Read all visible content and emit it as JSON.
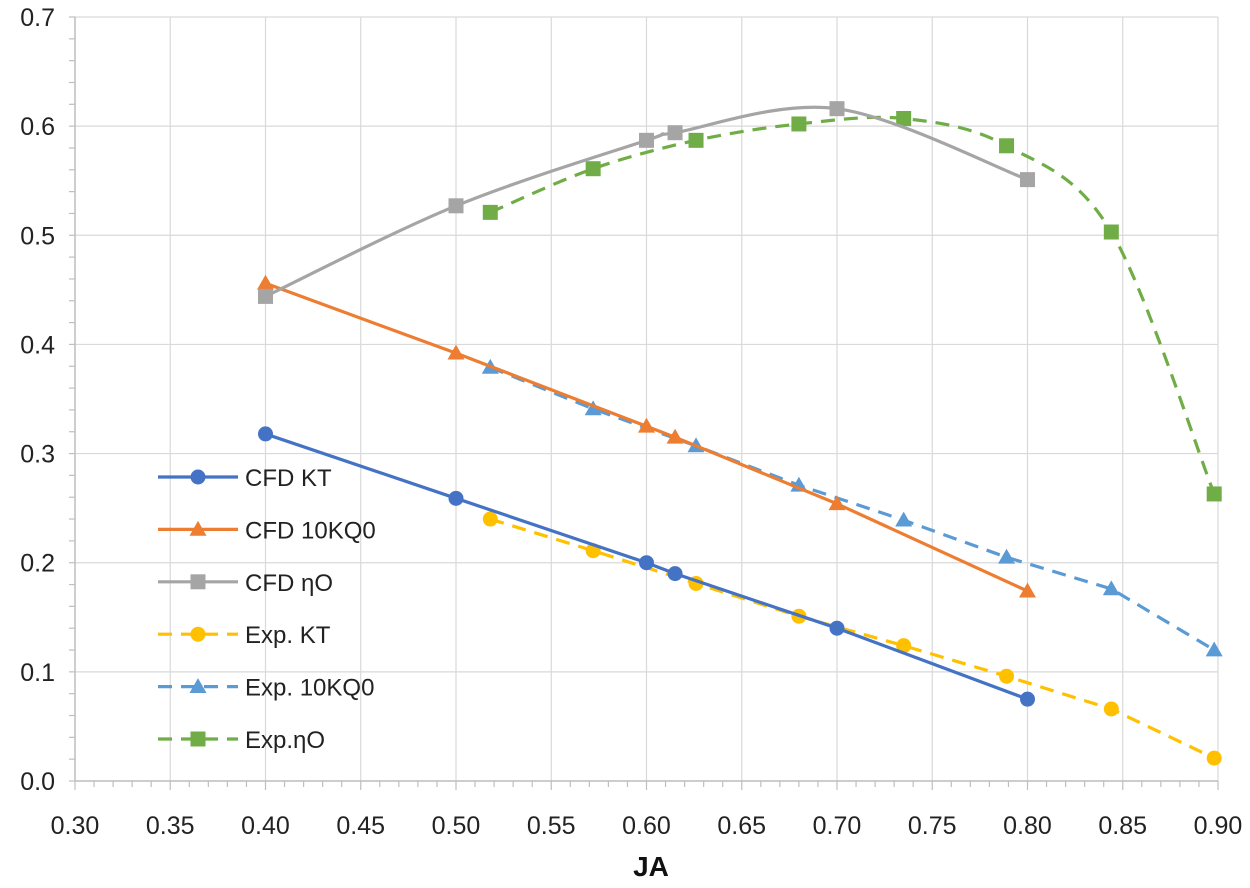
{
  "chart_data": {
    "type": "line",
    "title": "",
    "xlabel": "JA",
    "ylabel": "",
    "xlim": [
      0.3,
      0.9
    ],
    "ylim": [
      0.0,
      0.7
    ],
    "x_ticks": [
      "0.30",
      "0.35",
      "0.40",
      "0.45",
      "0.50",
      "0.55",
      "0.60",
      "0.65",
      "0.70",
      "0.75",
      "0.80",
      "0.85",
      "0.90"
    ],
    "y_ticks": [
      "0.0",
      "0.1",
      "0.2",
      "0.3",
      "0.4",
      "0.5",
      "0.6",
      "0.7"
    ],
    "grid": true,
    "legend_position": "bottom-left",
    "series": [
      {
        "name": "CFD KT",
        "color": "#4472C4",
        "marker": "circle",
        "dashed": false,
        "smooth": false,
        "x": [
          0.4,
          0.5,
          0.6,
          0.615,
          0.7,
          0.8
        ],
        "y": [
          0.318,
          0.259,
          0.2,
          0.19,
          0.14,
          0.075
        ]
      },
      {
        "name": "CFD 10KQ0",
        "color": "#ED7D31",
        "marker": "triangle",
        "dashed": false,
        "smooth": false,
        "x": [
          0.4,
          0.5,
          0.6,
          0.615,
          0.7,
          0.8
        ],
        "y": [
          0.456,
          0.392,
          0.325,
          0.315,
          0.254,
          0.174
        ]
      },
      {
        "name": "CFD ηO",
        "color": "#A5A5A5",
        "marker": "square",
        "dashed": false,
        "smooth": true,
        "x": [
          0.4,
          0.5,
          0.6,
          0.615,
          0.7,
          0.8
        ],
        "y": [
          0.444,
          0.527,
          0.587,
          0.594,
          0.616,
          0.551
        ]
      },
      {
        "name": "Exp. KT",
        "color": "#FFC000",
        "marker": "circle",
        "dashed": true,
        "smooth": false,
        "x": [
          0.518,
          0.572,
          0.626,
          0.68,
          0.735,
          0.789,
          0.844,
          0.898
        ],
        "y": [
          0.24,
          0.211,
          0.181,
          0.151,
          0.124,
          0.096,
          0.066,
          0.021
        ]
      },
      {
        "name": "Exp. 10KQ0",
        "color": "#5B9BD5",
        "marker": "triangle",
        "dashed": true,
        "smooth": false,
        "x": [
          0.518,
          0.572,
          0.626,
          0.68,
          0.735,
          0.789,
          0.844,
          0.898
        ],
        "y": [
          0.379,
          0.341,
          0.307,
          0.271,
          0.239,
          0.205,
          0.176,
          0.12
        ]
      },
      {
        "name": "Exp.ηO",
        "color": "#70AD47",
        "marker": "square",
        "dashed": true,
        "smooth": true,
        "x": [
          0.518,
          0.572,
          0.626,
          0.68,
          0.735,
          0.789,
          0.844,
          0.898
        ],
        "y": [
          0.521,
          0.561,
          0.587,
          0.602,
          0.607,
          0.582,
          0.503,
          0.263
        ]
      }
    ]
  }
}
